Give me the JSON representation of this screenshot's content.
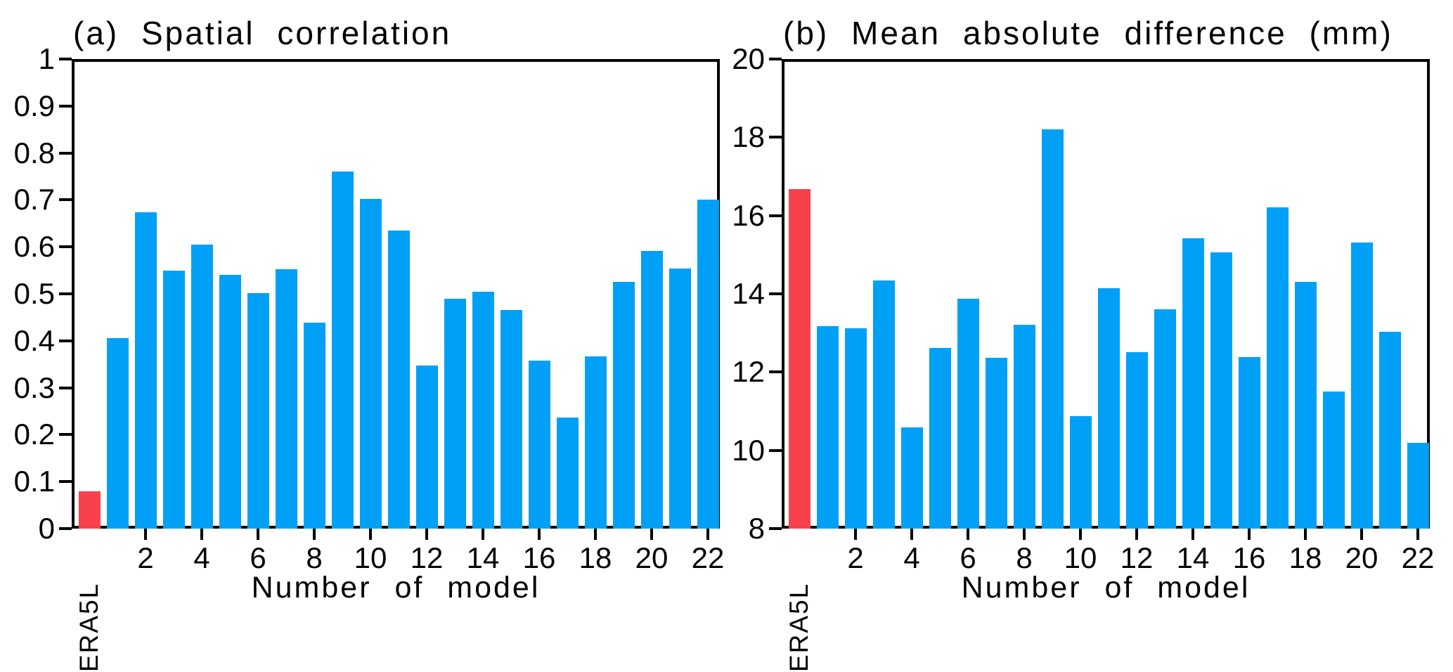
{
  "colors": {
    "bar_blue": "#00A0F6",
    "bar_red": "#F8414B",
    "axis_black": "#000000",
    "background": "#ffffff"
  },
  "chart_data": [
    {
      "type": "bar",
      "title": "(a) Spatial correlation",
      "xlabel": "Number of model",
      "ylim": [
        0,
        1
      ],
      "grid": false,
      "legend": "none",
      "ytick_values": [
        1,
        0.9,
        0.8,
        0.7,
        0.6,
        0.5,
        0.4,
        0.3,
        0.2,
        0.1,
        0
      ],
      "ytick_labels": [
        "1",
        "0.9",
        "0.8",
        "0.7",
        "0.6",
        "0.5",
        "0.4",
        "0.3",
        "0.2",
        "0.1",
        "0"
      ],
      "xtick_positions": [
        2,
        4,
        6,
        8,
        10,
        12,
        14,
        16,
        18,
        20,
        22
      ],
      "xtick_labels": [
        "2",
        "4",
        "6",
        "8",
        "10",
        "12",
        "14",
        "16",
        "18",
        "20",
        "22"
      ],
      "categories": [
        "ERA5L",
        "1",
        "2",
        "3",
        "4",
        "5",
        "6",
        "7",
        "8",
        "9",
        "10",
        "11",
        "12",
        "13",
        "14",
        "15",
        "16",
        "17",
        "18",
        "19",
        "20",
        "21",
        "22"
      ],
      "values": [
        0.085,
        0.412,
        0.68,
        0.556,
        0.611,
        0.547,
        0.508,
        0.559,
        0.445,
        0.766,
        0.708,
        0.64,
        0.354,
        0.495,
        0.511,
        0.471,
        0.364,
        0.242,
        0.373,
        0.531,
        0.598,
        0.56,
        0.707
      ],
      "highlight_index": 0
    },
    {
      "type": "bar",
      "title": "(b) Mean absolute difference (mm)",
      "xlabel": "Number of model",
      "ylim": [
        8,
        20
      ],
      "grid": false,
      "legend": "none",
      "ytick_values": [
        20,
        18,
        16,
        14,
        12,
        10,
        8
      ],
      "ytick_labels": [
        "20",
        "18",
        "16",
        "14",
        "12",
        "10",
        "8"
      ],
      "xtick_positions": [
        2,
        4,
        6,
        8,
        10,
        12,
        14,
        16,
        18,
        20,
        22
      ],
      "xtick_labels": [
        "2",
        "4",
        "6",
        "8",
        "10",
        "12",
        "14",
        "16",
        "18",
        "20",
        "22"
      ],
      "categories": [
        "ERA5L",
        "1",
        "2",
        "3",
        "4",
        "5",
        "6",
        "7",
        "8",
        "9",
        "10",
        "11",
        "12",
        "13",
        "14",
        "15",
        "16",
        "17",
        "18",
        "19",
        "20",
        "21",
        "22"
      ],
      "values": [
        16.74,
        13.25,
        13.19,
        14.42,
        10.65,
        12.68,
        13.94,
        12.43,
        13.29,
        18.27,
        10.95,
        14.22,
        12.58,
        13.68,
        15.49,
        15.14,
        12.46,
        16.28,
        14.37,
        11.57,
        15.38,
        13.11,
        10.26
      ],
      "highlight_index": 0
    }
  ]
}
